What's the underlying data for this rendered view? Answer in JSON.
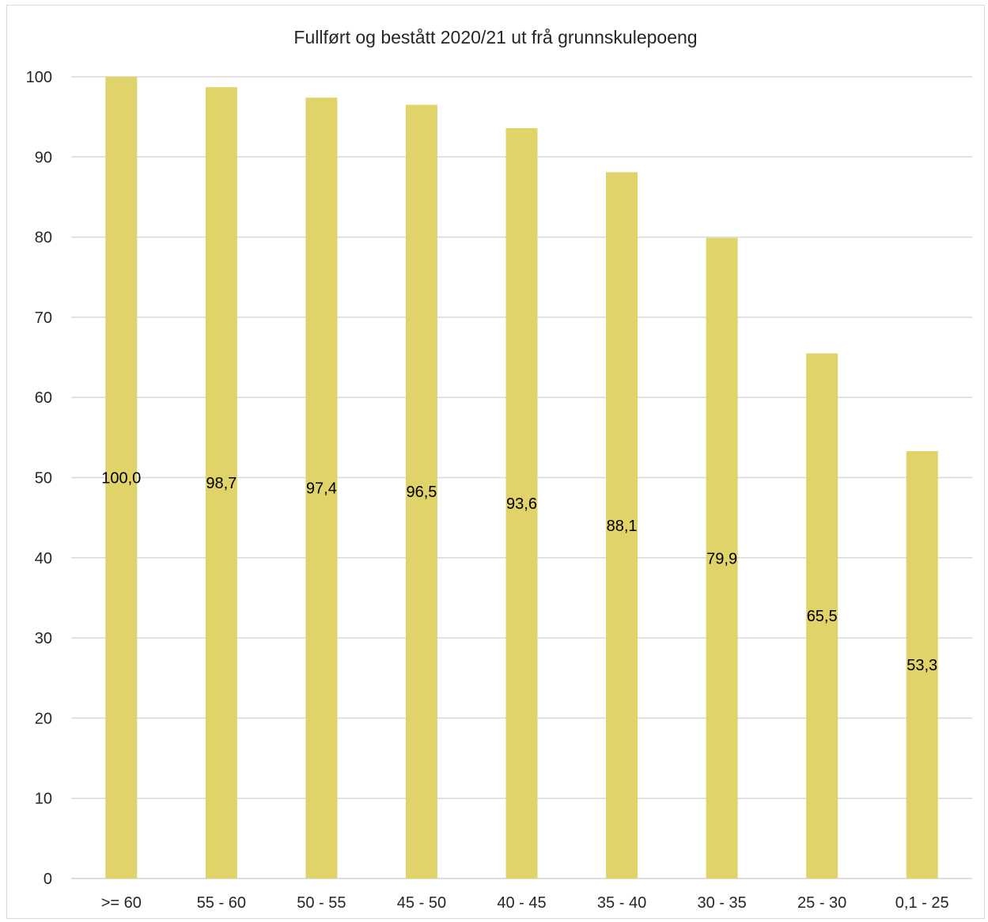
{
  "chart_data": {
    "type": "bar",
    "title": "Fullført og bestått 2020/21 ut frå grunnskulepoeng",
    "categories": [
      ">= 60",
      "55 - 60",
      "50 - 55",
      "45 - 50",
      "40 - 45",
      "35 - 40",
      "30 - 35",
      "25 - 30",
      "0,1 - 25"
    ],
    "values": [
      100.0,
      98.7,
      97.4,
      96.5,
      93.6,
      88.1,
      79.9,
      65.5,
      53.3
    ],
    "data_labels": [
      "100,0",
      "98,7",
      "97,4",
      "96,5",
      "93,6",
      "88,1",
      "79,9",
      "65,5",
      "53,3"
    ],
    "xlabel": "",
    "ylabel": "",
    "ylim": [
      0,
      100
    ],
    "yticks": [
      0,
      10,
      20,
      30,
      40,
      50,
      60,
      70,
      80,
      90,
      100
    ],
    "grid": true,
    "bar_color": "#e0d36a",
    "gridline_color": "#d9d9d9"
  }
}
